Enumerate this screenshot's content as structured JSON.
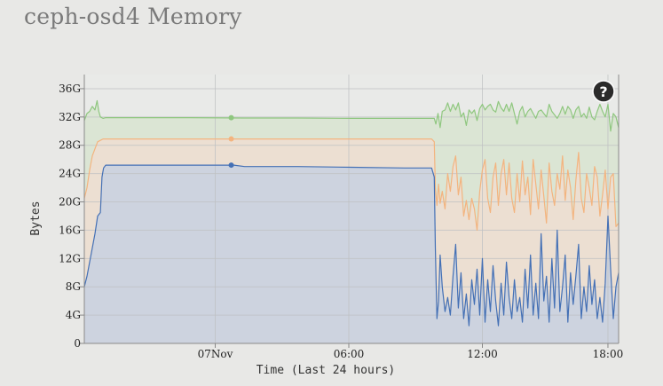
{
  "title": "ceph-osd4 Memory",
  "help_icon": {
    "name": "help-icon",
    "glyph": "?"
  },
  "chart_data": {
    "type": "area",
    "title": "",
    "xlabel": "Time (Last 24 hours)",
    "ylabel": "Bytes",
    "xlim": [
      0,
      1
    ],
    "ylim": [
      0,
      38
    ],
    "y_unit": "GiB",
    "x_ticks": [
      {
        "x": 0.245,
        "label": "07Nov"
      },
      {
        "x": 0.495,
        "label": "06:00"
      },
      {
        "x": 0.745,
        "label": "12:00"
      },
      {
        "x": 0.98,
        "label": "18:00"
      }
    ],
    "y_ticks": [
      {
        "v": 0,
        "label": "0"
      },
      {
        "v": 4,
        "label": "4G"
      },
      {
        "v": 8,
        "label": "8G"
      },
      {
        "v": 12,
        "label": "12G"
      },
      {
        "v": 16,
        "label": "16G"
      },
      {
        "v": 20,
        "label": "20G"
      },
      {
        "v": 24,
        "label": "24G"
      },
      {
        "v": 28,
        "label": "28G"
      },
      {
        "v": 32,
        "label": "32G"
      },
      {
        "v": 36,
        "label": "36G"
      }
    ],
    "grid": true,
    "series": [
      {
        "color": "#8fc77f",
        "fill": "#dbe5d4",
        "marker": {
          "x": 0.275,
          "y": 31.9
        },
        "x": [
          0,
          0.005,
          0.01,
          0.015,
          0.02,
          0.024,
          0.027,
          0.03,
          0.035,
          0.04,
          0.05,
          0.06,
          0.08,
          0.12,
          0.2,
          0.3,
          0.4,
          0.5,
          0.6,
          0.655,
          0.658,
          0.662,
          0.666,
          0.67,
          0.675,
          0.68,
          0.685,
          0.69,
          0.695,
          0.7,
          0.705,
          0.71,
          0.715,
          0.72,
          0.725,
          0.73,
          0.735,
          0.74,
          0.745,
          0.75,
          0.755,
          0.76,
          0.765,
          0.77,
          0.775,
          0.78,
          0.785,
          0.79,
          0.795,
          0.8,
          0.805,
          0.81,
          0.815,
          0.82,
          0.825,
          0.83,
          0.835,
          0.84,
          0.845,
          0.85,
          0.855,
          0.86,
          0.865,
          0.87,
          0.875,
          0.88,
          0.885,
          0.89,
          0.895,
          0.9,
          0.905,
          0.91,
          0.915,
          0.92,
          0.925,
          0.93,
          0.935,
          0.94,
          0.945,
          0.95,
          0.955,
          0.96,
          0.965,
          0.97,
          0.975,
          0.98,
          0.985,
          0.99,
          0.995,
          1.0
        ],
        "y": [
          31.5,
          32.5,
          32.8,
          33.5,
          33.0,
          34.3,
          32.8,
          32.0,
          31.8,
          31.9,
          31.9,
          31.9,
          31.9,
          31.9,
          31.9,
          31.85,
          31.85,
          31.8,
          31.8,
          31.8,
          31.0,
          32.5,
          30.5,
          32.8,
          33.0,
          34.0,
          32.8,
          33.8,
          33.0,
          34.0,
          32.0,
          32.6,
          30.8,
          33.0,
          32.5,
          33.0,
          31.5,
          33.2,
          33.8,
          33.0,
          33.5,
          33.8,
          33.0,
          32.7,
          34.2,
          33.3,
          32.8,
          33.8,
          32.8,
          34.0,
          32.5,
          31.0,
          32.8,
          33.5,
          32.0,
          32.8,
          33.2,
          32.5,
          31.8,
          32.8,
          33.0,
          32.5,
          32.0,
          33.8,
          32.8,
          32.3,
          31.8,
          32.5,
          33.5,
          32.4,
          33.5,
          33.0,
          31.8,
          33.0,
          33.5,
          32.0,
          32.5,
          31.8,
          33.4,
          32.0,
          31.6,
          32.8,
          33.8,
          32.8,
          32.0,
          33.8,
          30.0,
          32.5,
          32.0,
          30.5
        ]
      },
      {
        "color": "#f3b47f",
        "fill": "#ecdfd2",
        "marker": {
          "x": 0.275,
          "y": 28.9
        },
        "x": [
          0,
          0.005,
          0.01,
          0.015,
          0.02,
          0.025,
          0.03,
          0.035,
          0.04,
          0.05,
          0.06,
          0.08,
          0.12,
          0.2,
          0.3,
          0.4,
          0.5,
          0.6,
          0.65,
          0.655,
          0.657,
          0.66,
          0.663,
          0.666,
          0.67,
          0.675,
          0.68,
          0.685,
          0.69,
          0.695,
          0.7,
          0.705,
          0.71,
          0.715,
          0.72,
          0.725,
          0.73,
          0.735,
          0.74,
          0.745,
          0.75,
          0.755,
          0.76,
          0.765,
          0.77,
          0.775,
          0.78,
          0.785,
          0.79,
          0.795,
          0.8,
          0.805,
          0.81,
          0.815,
          0.82,
          0.825,
          0.83,
          0.835,
          0.84,
          0.845,
          0.85,
          0.855,
          0.86,
          0.865,
          0.87,
          0.875,
          0.88,
          0.885,
          0.89,
          0.895,
          0.9,
          0.905,
          0.91,
          0.915,
          0.92,
          0.925,
          0.93,
          0.935,
          0.94,
          0.945,
          0.95,
          0.955,
          0.96,
          0.965,
          0.97,
          0.975,
          0.98,
          0.985,
          0.99,
          0.995,
          1.0
        ],
        "y": [
          20.5,
          22.0,
          24.5,
          26.5,
          27.5,
          28.5,
          28.7,
          28.9,
          28.9,
          28.9,
          28.9,
          28.9,
          28.9,
          28.9,
          28.9,
          28.9,
          28.9,
          28.9,
          28.9,
          28.5,
          22.0,
          19.5,
          22.5,
          19.8,
          21.5,
          19.0,
          24.0,
          21.5,
          25.0,
          26.5,
          21.0,
          23.5,
          18.0,
          20.2,
          17.5,
          20.5,
          19.0,
          16.0,
          21.5,
          24.5,
          26.0,
          20.5,
          18.5,
          23.5,
          25.5,
          19.5,
          24.0,
          26.0,
          21.0,
          25.5,
          20.5,
          18.5,
          24.0,
          20.0,
          25.8,
          21.0,
          23.5,
          18.2,
          26.0,
          22.5,
          19.0,
          24.5,
          20.8,
          17.0,
          25.5,
          21.5,
          19.5,
          24.0,
          21.8,
          26.5,
          20.2,
          24.5,
          22.0,
          17.5,
          23.0,
          27.0,
          20.5,
          18.5,
          24.0,
          22.0,
          19.5,
          25.0,
          23.5,
          18.0,
          21.0,
          24.5,
          19.0,
          23.5,
          24.0,
          16.5,
          17.0
        ]
      },
      {
        "color": "#4470b5",
        "fill": "#cdd3df",
        "marker": {
          "x": 0.275,
          "y": 25.2
        },
        "x": [
          0,
          0.005,
          0.01,
          0.015,
          0.02,
          0.025,
          0.03,
          0.033,
          0.036,
          0.04,
          0.05,
          0.06,
          0.08,
          0.12,
          0.2,
          0.28,
          0.3,
          0.4,
          0.5,
          0.6,
          0.65,
          0.655,
          0.657,
          0.66,
          0.663,
          0.666,
          0.67,
          0.675,
          0.68,
          0.685,
          0.69,
          0.695,
          0.7,
          0.705,
          0.71,
          0.715,
          0.72,
          0.725,
          0.73,
          0.735,
          0.74,
          0.745,
          0.75,
          0.755,
          0.76,
          0.765,
          0.77,
          0.775,
          0.78,
          0.785,
          0.79,
          0.795,
          0.8,
          0.805,
          0.81,
          0.815,
          0.82,
          0.825,
          0.83,
          0.835,
          0.84,
          0.845,
          0.85,
          0.855,
          0.86,
          0.865,
          0.87,
          0.875,
          0.88,
          0.885,
          0.89,
          0.895,
          0.9,
          0.905,
          0.91,
          0.915,
          0.92,
          0.925,
          0.93,
          0.935,
          0.94,
          0.945,
          0.95,
          0.955,
          0.96,
          0.965,
          0.97,
          0.975,
          0.98,
          0.985,
          0.99,
          0.995,
          1.0
        ],
        "y": [
          8.0,
          9.5,
          11.5,
          13.5,
          15.5,
          18.0,
          18.5,
          23.5,
          24.8,
          25.2,
          25.2,
          25.2,
          25.2,
          25.2,
          25.2,
          25.2,
          25.0,
          25.0,
          24.9,
          24.8,
          24.8,
          23.5,
          13.5,
          3.5,
          6.0,
          12.5,
          8.0,
          4.5,
          6.5,
          4.0,
          9.5,
          14.0,
          5.0,
          10.0,
          3.5,
          7.0,
          2.5,
          9.0,
          5.5,
          10.5,
          4.0,
          12.0,
          3.0,
          9.0,
          4.5,
          11.0,
          6.0,
          2.5,
          8.5,
          4.0,
          11.5,
          6.5,
          3.5,
          9.0,
          4.5,
          6.5,
          3.0,
          10.5,
          5.0,
          12.5,
          4.0,
          8.5,
          3.5,
          15.5,
          6.0,
          9.5,
          3.0,
          12.0,
          5.0,
          16.0,
          4.5,
          8.0,
          12.5,
          3.0,
          10.0,
          5.5,
          9.5,
          14.0,
          3.5,
          8.0,
          4.5,
          11.0,
          5.5,
          9.0,
          3.5,
          6.5,
          3.0,
          8.5,
          18.0,
          10.5,
          3.5,
          8.0,
          10.0
        ]
      }
    ]
  }
}
